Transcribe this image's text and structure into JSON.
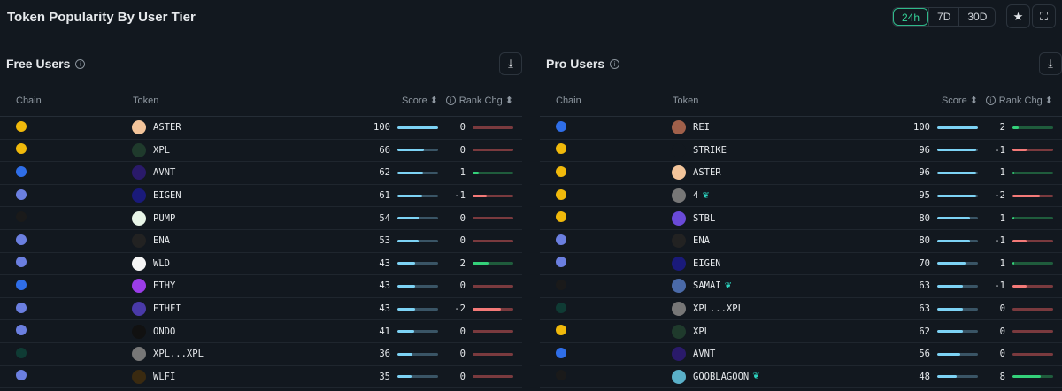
{
  "title": "Token Popularity By User Tier",
  "ranges": [
    "24h",
    "7D",
    "30D"
  ],
  "active_range": "24h",
  "colors": {
    "chains": {
      "bnb": "#f0b90b",
      "base": "#2f6ee8",
      "eth": "#6b7fe0",
      "sol": "#1a1a1a",
      "hype": "#0f3b34"
    }
  },
  "headers": {
    "chain": "Chain",
    "token": "Token",
    "score": "Score",
    "rank": "Rank Chg"
  },
  "panels": [
    {
      "title": "Free Users",
      "rows": [
        {
          "chain": "bnb",
          "token": "ASTER",
          "tc": "#f2c49a",
          "score": 100,
          "rank": "0",
          "fill": 0
        },
        {
          "chain": "bnb",
          "token": "XPL",
          "tc": "#1f3a2c",
          "score": 66,
          "rank": "0",
          "fill": 0
        },
        {
          "chain": "base",
          "token": "AVNT",
          "tc": "#2a1a6a",
          "score": 62,
          "rank": "1",
          "fill": 0.15
        },
        {
          "chain": "eth",
          "token": "EIGEN",
          "tc": "#1a1a7a",
          "score": 61,
          "rank": "-1",
          "fill": 0.35
        },
        {
          "chain": "sol",
          "token": "PUMP",
          "tc": "#e8f5e8",
          "score": 54,
          "rank": "0",
          "fill": 0
        },
        {
          "chain": "eth",
          "token": "ENA",
          "tc": "#222",
          "score": 53,
          "rank": "0",
          "fill": 0
        },
        {
          "chain": "eth",
          "token": "WLD",
          "tc": "#f5f5f5",
          "score": 43,
          "rank": "2",
          "fill": 0.4
        },
        {
          "chain": "base",
          "token": "ETHY",
          "tc": "#9b3de8",
          "score": 43,
          "rank": "0",
          "fill": 0
        },
        {
          "chain": "eth",
          "token": "ETHFI",
          "tc": "#4a3aa8",
          "score": 43,
          "rank": "-2",
          "fill": 0.7
        },
        {
          "chain": "eth",
          "token": "ONDO",
          "tc": "#111",
          "score": 41,
          "rank": "0",
          "fill": 0
        },
        {
          "chain": "hype",
          "token": "XPL...XPL",
          "tc": "#777",
          "score": 36,
          "rank": "0",
          "fill": 0
        },
        {
          "chain": "eth",
          "token": "WLFI",
          "tc": "#3a2a10",
          "score": 35,
          "rank": "0",
          "fill": 0
        }
      ]
    },
    {
      "title": "Pro Users",
      "rows": [
        {
          "chain": "base",
          "token": "REI",
          "tc": "#a0604a",
          "score": 100,
          "rank": "2",
          "fill": 0.15
        },
        {
          "chain": "bnb",
          "token": "STRIKE",
          "tc": "#12181f",
          "score": 96,
          "rank": "-1",
          "fill": 0.35
        },
        {
          "chain": "bnb",
          "token": "ASTER",
          "tc": "#f2c49a",
          "score": 96,
          "rank": "1",
          "fill": 0.05
        },
        {
          "chain": "bnb",
          "token": "4",
          "tc": "#777",
          "score": 95,
          "rank": "-2",
          "fill": 0.68,
          "leaf": true
        },
        {
          "chain": "bnb",
          "token": "STBL",
          "tc": "#6a4ad8",
          "score": 80,
          "rank": "1",
          "fill": 0.05
        },
        {
          "chain": "eth",
          "token": "ENA",
          "tc": "#222",
          "score": 80,
          "rank": "-1",
          "fill": 0.35
        },
        {
          "chain": "eth",
          "token": "EIGEN",
          "tc": "#1a1a7a",
          "score": 70,
          "rank": "1",
          "fill": 0.05
        },
        {
          "chain": "sol",
          "token": "SAMAI",
          "tc": "#4a6aa8",
          "score": 63,
          "rank": "-1",
          "fill": 0.35,
          "leaf": true
        },
        {
          "chain": "hype",
          "token": "XPL...XPL",
          "tc": "#777",
          "score": 63,
          "rank": "0",
          "fill": 0
        },
        {
          "chain": "bnb",
          "token": "XPL",
          "tc": "#1f3a2c",
          "score": 62,
          "rank": "0",
          "fill": 0
        },
        {
          "chain": "base",
          "token": "AVNT",
          "tc": "#2a1a6a",
          "score": 56,
          "rank": "0",
          "fill": 0
        },
        {
          "chain": "sol",
          "token": "GOOBLAGOON",
          "tc": "#5ab0c8",
          "score": 48,
          "rank": "8",
          "fill": 0.7,
          "leaf": true
        }
      ]
    }
  ]
}
